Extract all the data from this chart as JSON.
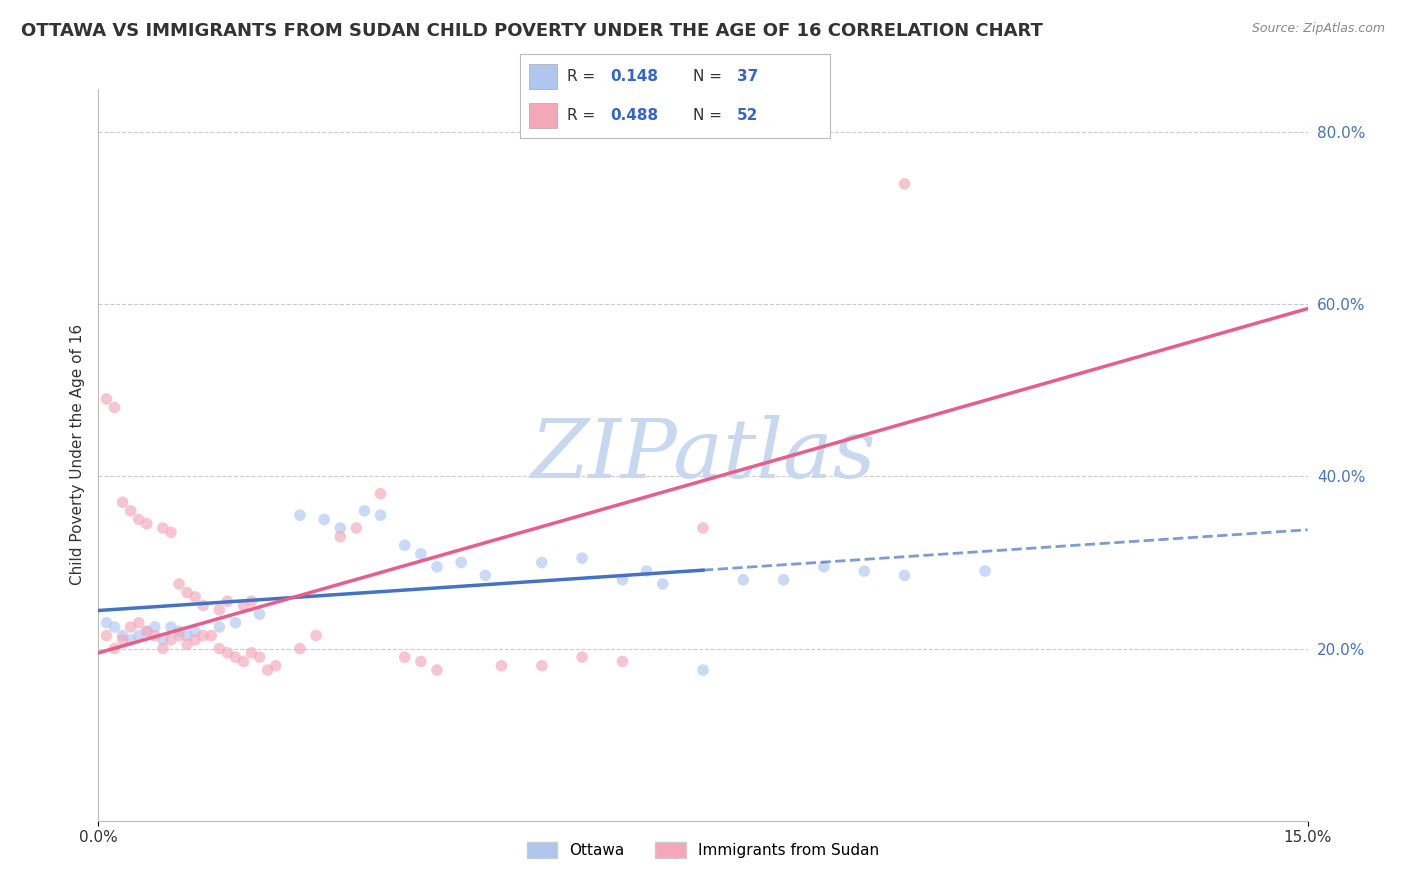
{
  "title": "OTTAWA VS IMMIGRANTS FROM SUDAN CHILD POVERTY UNDER THE AGE OF 16 CORRELATION CHART",
  "source": "Source: ZipAtlas.com",
  "ylabel": "Child Poverty Under the Age of 16",
  "watermark": "ZIPatlas",
  "watermark_color": "#c8d8f0",
  "legend_entries": [
    {
      "label": "Ottawa",
      "color": "#aec6f0",
      "R": "0.148",
      "N": "37"
    },
    {
      "label": "Immigrants from Sudan",
      "color": "#f4a7b9",
      "R": "0.488",
      "N": "52"
    }
  ],
  "ottawa_scatter": [
    [
      0.001,
      0.23
    ],
    [
      0.002,
      0.225
    ],
    [
      0.003,
      0.215
    ],
    [
      0.004,
      0.21
    ],
    [
      0.005,
      0.215
    ],
    [
      0.006,
      0.22
    ],
    [
      0.007,
      0.225
    ],
    [
      0.008,
      0.21
    ],
    [
      0.009,
      0.225
    ],
    [
      0.01,
      0.22
    ],
    [
      0.011,
      0.215
    ],
    [
      0.012,
      0.22
    ],
    [
      0.015,
      0.225
    ],
    [
      0.017,
      0.23
    ],
    [
      0.02,
      0.24
    ],
    [
      0.025,
      0.355
    ],
    [
      0.028,
      0.35
    ],
    [
      0.03,
      0.34
    ],
    [
      0.033,
      0.36
    ],
    [
      0.035,
      0.355
    ],
    [
      0.038,
      0.32
    ],
    [
      0.04,
      0.31
    ],
    [
      0.042,
      0.295
    ],
    [
      0.045,
      0.3
    ],
    [
      0.048,
      0.285
    ],
    [
      0.055,
      0.3
    ],
    [
      0.06,
      0.305
    ],
    [
      0.065,
      0.28
    ],
    [
      0.068,
      0.29
    ],
    [
      0.07,
      0.275
    ],
    [
      0.075,
      0.175
    ],
    [
      0.08,
      0.28
    ],
    [
      0.085,
      0.28
    ],
    [
      0.09,
      0.295
    ],
    [
      0.095,
      0.29
    ],
    [
      0.1,
      0.285
    ],
    [
      0.11,
      0.29
    ]
  ],
  "sudan_scatter": [
    [
      0.001,
      0.215
    ],
    [
      0.002,
      0.2
    ],
    [
      0.003,
      0.21
    ],
    [
      0.004,
      0.225
    ],
    [
      0.005,
      0.23
    ],
    [
      0.006,
      0.22
    ],
    [
      0.007,
      0.215
    ],
    [
      0.008,
      0.2
    ],
    [
      0.009,
      0.21
    ],
    [
      0.01,
      0.215
    ],
    [
      0.011,
      0.205
    ],
    [
      0.012,
      0.21
    ],
    [
      0.013,
      0.215
    ],
    [
      0.014,
      0.215
    ],
    [
      0.015,
      0.2
    ],
    [
      0.016,
      0.195
    ],
    [
      0.017,
      0.19
    ],
    [
      0.018,
      0.185
    ],
    [
      0.019,
      0.195
    ],
    [
      0.02,
      0.19
    ],
    [
      0.001,
      0.49
    ],
    [
      0.002,
      0.48
    ],
    [
      0.003,
      0.37
    ],
    [
      0.004,
      0.36
    ],
    [
      0.005,
      0.35
    ],
    [
      0.006,
      0.345
    ],
    [
      0.008,
      0.34
    ],
    [
      0.009,
      0.335
    ],
    [
      0.01,
      0.275
    ],
    [
      0.011,
      0.265
    ],
    [
      0.012,
      0.26
    ],
    [
      0.013,
      0.25
    ],
    [
      0.015,
      0.245
    ],
    [
      0.016,
      0.255
    ],
    [
      0.018,
      0.25
    ],
    [
      0.019,
      0.255
    ],
    [
      0.021,
      0.175
    ],
    [
      0.022,
      0.18
    ],
    [
      0.025,
      0.2
    ],
    [
      0.027,
      0.215
    ],
    [
      0.03,
      0.33
    ],
    [
      0.032,
      0.34
    ],
    [
      0.035,
      0.38
    ],
    [
      0.038,
      0.19
    ],
    [
      0.04,
      0.185
    ],
    [
      0.042,
      0.175
    ],
    [
      0.05,
      0.18
    ],
    [
      0.055,
      0.18
    ],
    [
      0.075,
      0.34
    ],
    [
      0.1,
      0.74
    ],
    [
      0.06,
      0.19
    ],
    [
      0.065,
      0.185
    ]
  ],
  "xlim": [
    0.0,
    0.15
  ],
  "ylim": [
    0.0,
    0.85
  ],
  "bg_color": "#ffffff",
  "plot_bg_color": "#ffffff",
  "grid_color": "#cccccc",
  "title_fontsize": 13,
  "axis_label_fontsize": 11,
  "tick_fontsize": 11,
  "scatter_alpha": 0.65,
  "scatter_size": 70,
  "ottawa_line_color": "#4472c4",
  "ottawa_line_solid_end": 0.075,
  "sudan_line_color": "#e85d8a",
  "legend_R_color": "#3366cc",
  "legend_N_color": "#3366cc"
}
